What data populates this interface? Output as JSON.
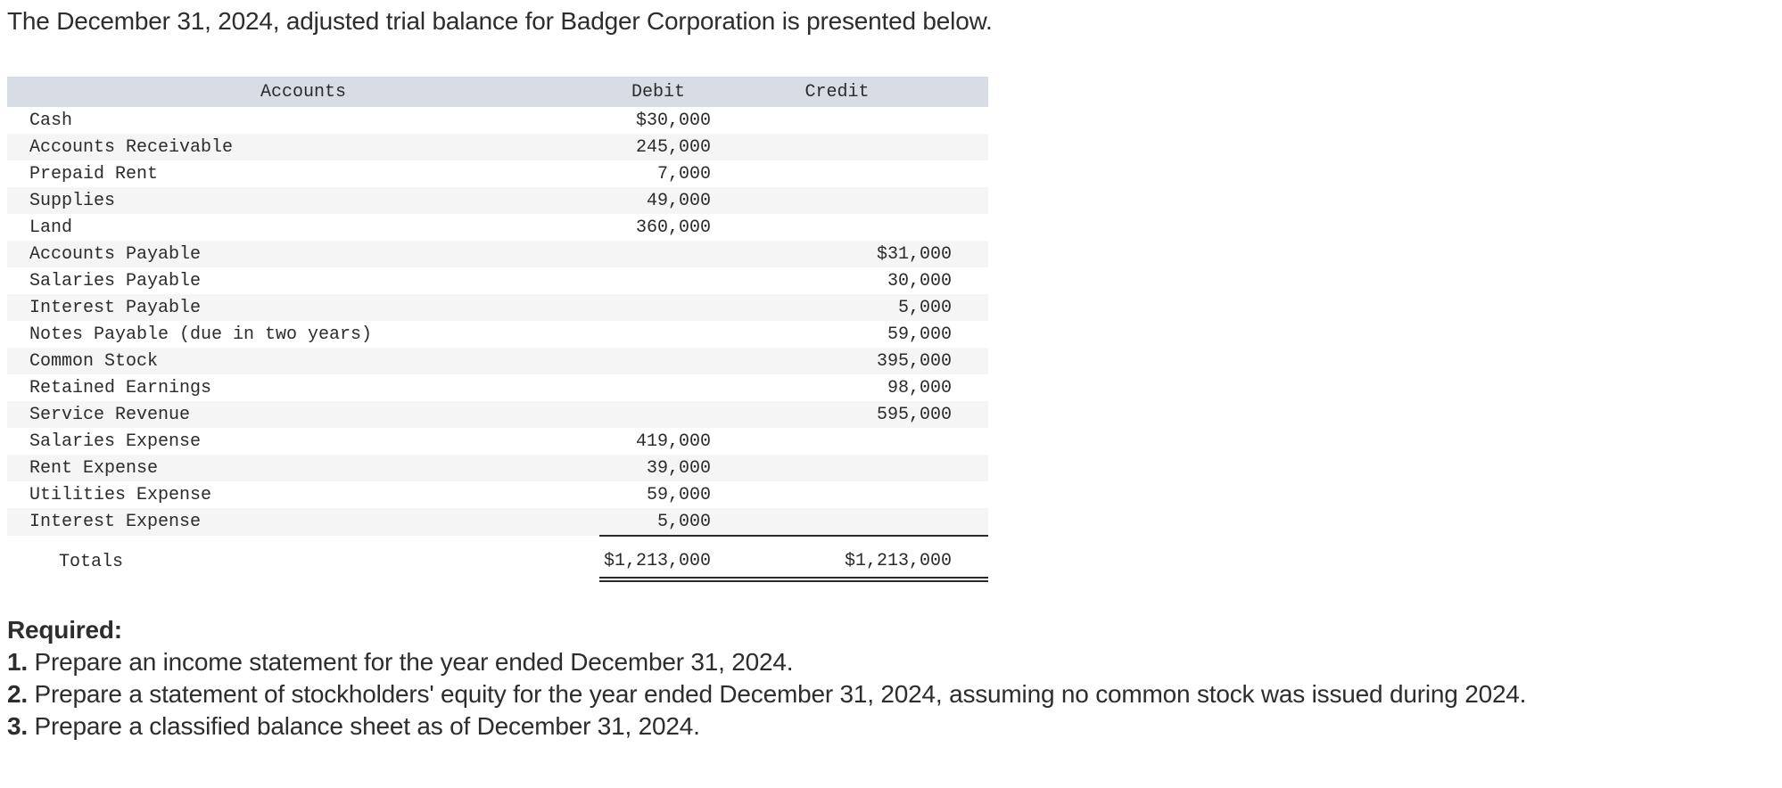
{
  "title": "The December 31, 2024, adjusted trial balance for Badger Corporation is presented below.",
  "table": {
    "headers": {
      "accounts": "Accounts",
      "debit": "Debit",
      "credit": "Credit"
    },
    "rows": [
      {
        "account": "Cash",
        "debit": "$30,000",
        "credit": ""
      },
      {
        "account": "Accounts Receivable",
        "debit": "245,000",
        "credit": ""
      },
      {
        "account": "Prepaid Rent",
        "debit": "7,000",
        "credit": ""
      },
      {
        "account": "Supplies",
        "debit": "49,000",
        "credit": ""
      },
      {
        "account": "Land",
        "debit": "360,000",
        "credit": ""
      },
      {
        "account": "Accounts Payable",
        "debit": "",
        "credit": "$31,000"
      },
      {
        "account": "Salaries Payable",
        "debit": "",
        "credit": "30,000"
      },
      {
        "account": "Interest Payable",
        "debit": "",
        "credit": "5,000"
      },
      {
        "account": "Notes Payable (due in two years)",
        "debit": "",
        "credit": "59,000"
      },
      {
        "account": "Common Stock",
        "debit": "",
        "credit": "395,000"
      },
      {
        "account": "Retained Earnings",
        "debit": "",
        "credit": "98,000"
      },
      {
        "account": "Service Revenue",
        "debit": "",
        "credit": "595,000"
      },
      {
        "account": "Salaries Expense",
        "debit": "419,000",
        "credit": ""
      },
      {
        "account": "Rent Expense",
        "debit": "39,000",
        "credit": ""
      },
      {
        "account": "Utilities Expense",
        "debit": "59,000",
        "credit": ""
      },
      {
        "account": "Interest Expense",
        "debit": "5,000",
        "credit": ""
      }
    ],
    "totals": {
      "label": "Totals",
      "debit": "$1,213,000",
      "credit": "$1,213,000"
    }
  },
  "required": {
    "heading": "Required:",
    "items": [
      {
        "number": "1.",
        "text": "Prepare an income statement for the year ended December 31, 2024."
      },
      {
        "number": "2.",
        "text": "Prepare a statement of stockholders' equity for the year ended December 31, 2024, assuming no common stock was issued during 2024."
      },
      {
        "number": "3.",
        "text": "Prepare a classified balance sheet as of December 31, 2024."
      }
    ]
  },
  "colors": {
    "header_bg": "#d8dce5",
    "row_alt_bg": "#f5f5f6",
    "rule_color": "#2b2b2b",
    "text": "#2d2d2d"
  }
}
